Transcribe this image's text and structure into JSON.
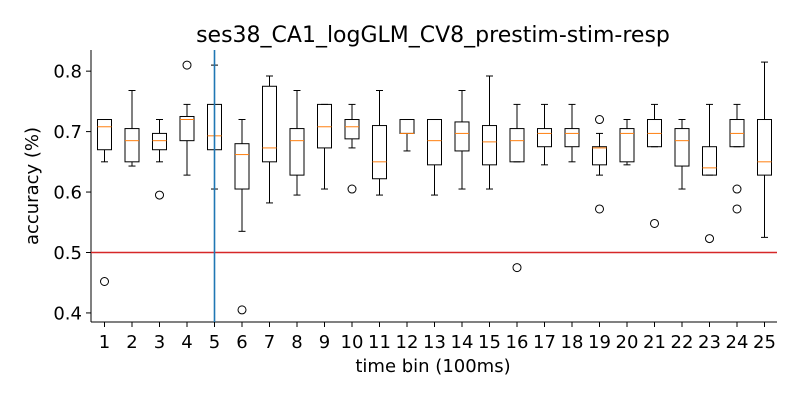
{
  "chart_data": {
    "type": "boxplot",
    "title": "ses38_CA1_logGLM_CV8_prestim-stim-resp",
    "xlabel": "time bin (100ms)",
    "ylabel": "accuracy (%)",
    "ylim": [
      0.385,
      0.835
    ],
    "yticks": [
      0.4,
      0.5,
      0.6,
      0.7,
      0.8
    ],
    "ytick_labels": [
      "0.4",
      "0.5",
      "0.6",
      "0.7",
      "0.8"
    ],
    "categories": [
      "1",
      "2",
      "3",
      "4",
      "5",
      "6",
      "7",
      "8",
      "9",
      "10",
      "11",
      "12",
      "13",
      "14",
      "15",
      "16",
      "17",
      "18",
      "19",
      "20",
      "21",
      "22",
      "23",
      "24",
      "25"
    ],
    "boxes": [
      {
        "q1": 0.67,
        "median": 0.708,
        "q3": 0.72,
        "whisker_low": 0.65,
        "whisker_high": 0.72,
        "fliers": [
          0.452
        ]
      },
      {
        "q1": 0.65,
        "median": 0.685,
        "q3": 0.705,
        "whisker_low": 0.643,
        "whisker_high": 0.768,
        "fliers": []
      },
      {
        "q1": 0.67,
        "median": 0.685,
        "q3": 0.697,
        "whisker_low": 0.65,
        "whisker_high": 0.72,
        "fliers": [
          0.595
        ]
      },
      {
        "q1": 0.685,
        "median": 0.72,
        "q3": 0.725,
        "whisker_low": 0.628,
        "whisker_high": 0.745,
        "fliers": [
          0.81
        ]
      },
      {
        "q1": 0.67,
        "median": 0.693,
        "q3": 0.745,
        "whisker_low": 0.605,
        "whisker_high": 0.81,
        "fliers": []
      },
      {
        "q1": 0.605,
        "median": 0.662,
        "q3": 0.68,
        "whisker_low": 0.535,
        "whisker_high": 0.72,
        "fliers": [
          0.405
        ]
      },
      {
        "q1": 0.65,
        "median": 0.673,
        "q3": 0.775,
        "whisker_low": 0.582,
        "whisker_high": 0.792,
        "fliers": []
      },
      {
        "q1": 0.628,
        "median": 0.685,
        "q3": 0.705,
        "whisker_low": 0.595,
        "whisker_high": 0.768,
        "fliers": []
      },
      {
        "q1": 0.673,
        "median": 0.708,
        "q3": 0.745,
        "whisker_low": 0.605,
        "whisker_high": 0.745,
        "fliers": []
      },
      {
        "q1": 0.688,
        "median": 0.708,
        "q3": 0.72,
        "whisker_low": 0.673,
        "whisker_high": 0.745,
        "fliers": [
          0.605
        ]
      },
      {
        "q1": 0.622,
        "median": 0.65,
        "q3": 0.71,
        "whisker_low": 0.595,
        "whisker_high": 0.768,
        "fliers": []
      },
      {
        "q1": 0.697,
        "median": 0.697,
        "q3": 0.72,
        "whisker_low": 0.668,
        "whisker_high": 0.72,
        "fliers": []
      },
      {
        "q1": 0.645,
        "median": 0.685,
        "q3": 0.72,
        "whisker_low": 0.595,
        "whisker_high": 0.72,
        "fliers": []
      },
      {
        "q1": 0.668,
        "median": 0.697,
        "q3": 0.716,
        "whisker_low": 0.605,
        "whisker_high": 0.768,
        "fliers": []
      },
      {
        "q1": 0.645,
        "median": 0.683,
        "q3": 0.71,
        "whisker_low": 0.605,
        "whisker_high": 0.792,
        "fliers": []
      },
      {
        "q1": 0.65,
        "median": 0.685,
        "q3": 0.705,
        "whisker_low": 0.65,
        "whisker_high": 0.745,
        "fliers": [
          0.475
        ]
      },
      {
        "q1": 0.675,
        "median": 0.697,
        "q3": 0.705,
        "whisker_low": 0.645,
        "whisker_high": 0.745,
        "fliers": []
      },
      {
        "q1": 0.675,
        "median": 0.697,
        "q3": 0.705,
        "whisker_low": 0.65,
        "whisker_high": 0.745,
        "fliers": []
      },
      {
        "q1": 0.645,
        "median": 0.673,
        "q3": 0.675,
        "whisker_low": 0.628,
        "whisker_high": 0.697,
        "fliers": [
          0.72,
          0.572
        ]
      },
      {
        "q1": 0.65,
        "median": 0.697,
        "q3": 0.705,
        "whisker_low": 0.645,
        "whisker_high": 0.72,
        "fliers": []
      },
      {
        "q1": 0.675,
        "median": 0.697,
        "q3": 0.72,
        "whisker_low": 0.675,
        "whisker_high": 0.745,
        "fliers": [
          0.548
        ]
      },
      {
        "q1": 0.643,
        "median": 0.685,
        "q3": 0.705,
        "whisker_low": 0.605,
        "whisker_high": 0.72,
        "fliers": []
      },
      {
        "q1": 0.628,
        "median": 0.64,
        "q3": 0.675,
        "whisker_low": 0.628,
        "whisker_high": 0.745,
        "fliers": [
          0.523
        ]
      },
      {
        "q1": 0.675,
        "median": 0.697,
        "q3": 0.72,
        "whisker_low": 0.675,
        "whisker_high": 0.745,
        "fliers": [
          0.605,
          0.572
        ]
      },
      {
        "q1": 0.628,
        "median": 0.65,
        "q3": 0.72,
        "whisker_low": 0.525,
        "whisker_high": 0.815,
        "fliers": []
      }
    ],
    "reference_lines": [
      {
        "orientation": "horizontal",
        "value": 0.5,
        "color": "#d62728"
      },
      {
        "orientation": "vertical",
        "category": "5",
        "color": "#1f77b4"
      }
    ],
    "grid": false,
    "colors": {
      "box": "#000000",
      "median": "#ff7f0e",
      "hline": "#d62728",
      "vline": "#1f77b4"
    }
  }
}
